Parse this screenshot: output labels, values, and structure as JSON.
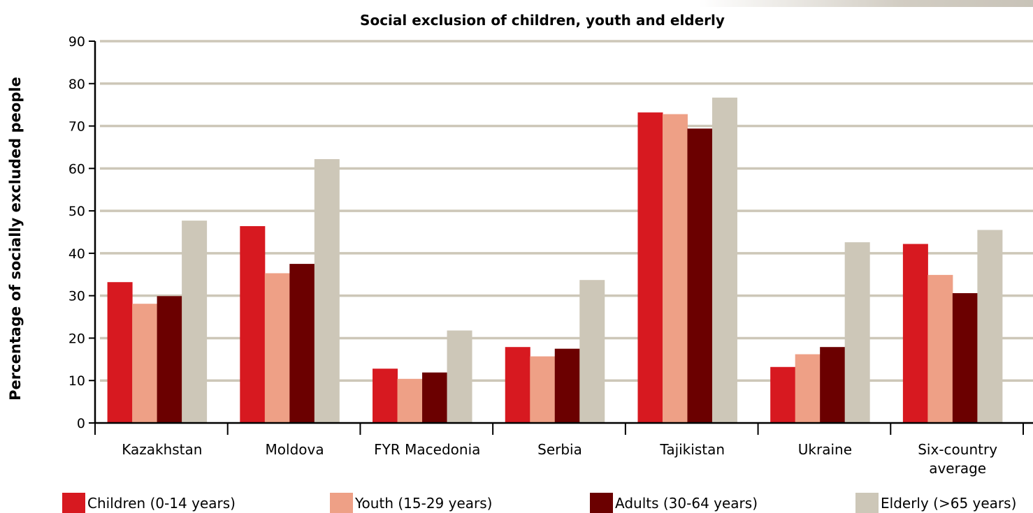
{
  "chart_data": {
    "type": "bar",
    "title": "Social exclusion of children, youth and elderly",
    "xlabel": "",
    "ylabel": "Percentage of socially excluded people",
    "ylim": [
      0,
      90
    ],
    "yticks": [
      0,
      10,
      20,
      30,
      40,
      50,
      60,
      70,
      80,
      90
    ],
    "grid": true,
    "legend_position": "bottom",
    "categories": [
      [
        "Kazakhstan"
      ],
      [
        "Moldova"
      ],
      [
        "FYR Macedonia"
      ],
      [
        "Serbia"
      ],
      [
        "Tajikistan"
      ],
      [
        "Ukraine"
      ],
      [
        "Six-country",
        "average"
      ]
    ],
    "series": [
      {
        "name": "Children (0-14 years)",
        "color": "#d71920",
        "values": [
          33.2,
          46.4,
          12.8,
          17.9,
          73.2,
          13.2,
          42.2
        ]
      },
      {
        "name": "Youth (15-29 years)",
        "color": "#eea086",
        "values": [
          28.1,
          35.3,
          10.4,
          15.7,
          72.8,
          16.2,
          34.9
        ]
      },
      {
        "name": "Adults (30-64 years)",
        "color": "#6b0000",
        "values": [
          29.9,
          37.5,
          11.9,
          17.5,
          69.4,
          17.9,
          30.6
        ]
      },
      {
        "name": "Elderly (>65 years)",
        "color": "#cdc7b8",
        "values": [
          47.7,
          62.2,
          21.8,
          33.7,
          76.7,
          42.6,
          45.5
        ]
      }
    ],
    "gridline_color": "#cdc7b8"
  }
}
